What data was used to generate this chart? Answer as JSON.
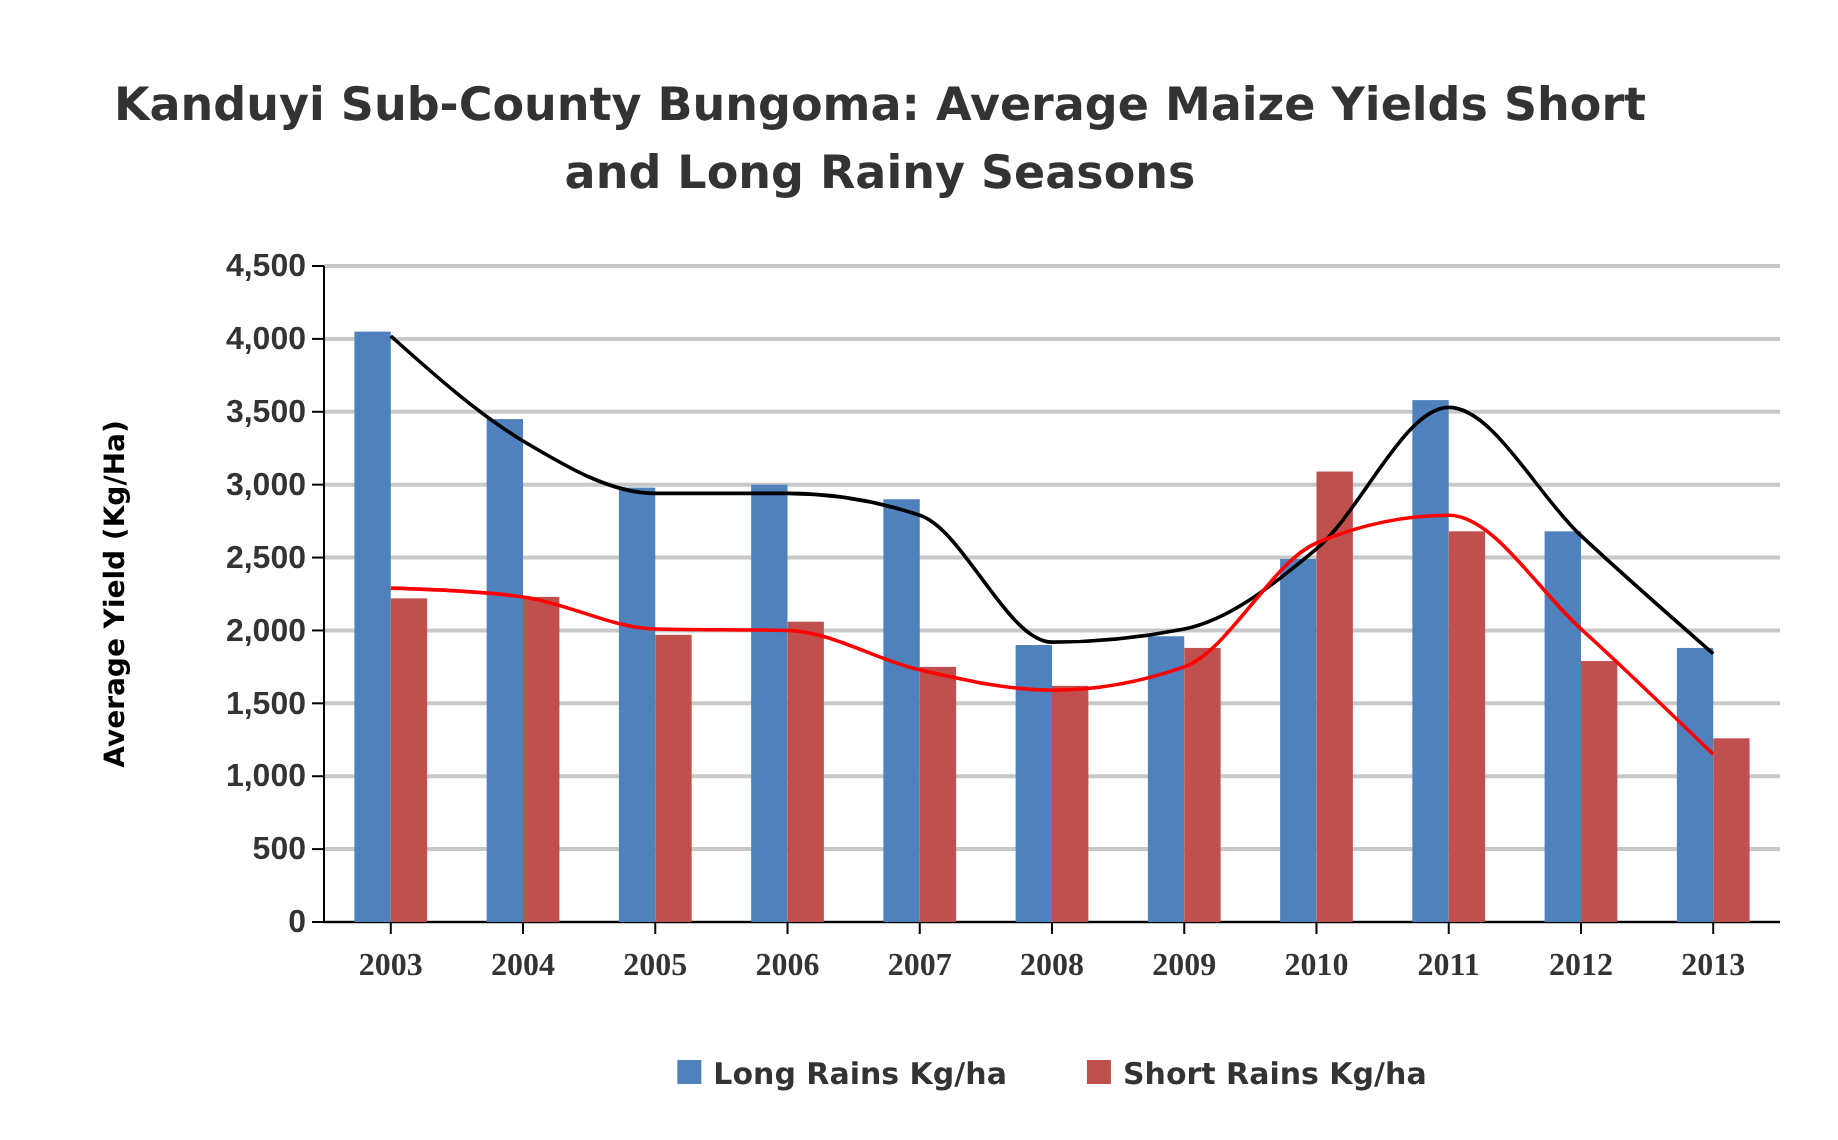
{
  "chart_data": {
    "type": "bar",
    "title": "Kanduyi Sub-County Bungoma: Average Maize Yields Short and Long Rainy Seasons",
    "ylabel": "Average Yield (Kg/Ha)",
    "categories": [
      "2003",
      "2004",
      "2005",
      "2006",
      "2007",
      "2008",
      "2009",
      "2010",
      "2011",
      "2012",
      "2013"
    ],
    "series": [
      {
        "name": "Long Rains Kg/ha",
        "color": "#4f81bd",
        "values": [
          4050,
          3450,
          2980,
          3000,
          2900,
          1900,
          1960,
          2490,
          3580,
          2680,
          1880
        ]
      },
      {
        "name": "Short Rains Kg/ha",
        "color": "#c0504d",
        "values": [
          2220,
          2230,
          1970,
          2060,
          1750,
          1620,
          1880,
          3090,
          2680,
          1790,
          1260
        ]
      },
      {
        "type": "line",
        "color": "#000000",
        "values": [
          4020,
          3300,
          2940,
          2940,
          2790,
          1920,
          2010,
          2560,
          3530,
          2650,
          1840
        ]
      },
      {
        "type": "line",
        "color": "#ff0000",
        "values": [
          2290,
          2230,
          2010,
          2000,
          1730,
          1590,
          1750,
          2600,
          2790,
          2010,
          1150
        ]
      }
    ],
    "ylim": [
      0,
      4500
    ],
    "yticks": [
      {
        "value": 0,
        "label": "0"
      },
      {
        "value": 500,
        "label": "500"
      },
      {
        "value": 1000,
        "label": "1,000"
      },
      {
        "value": 1500,
        "label": "1,500"
      },
      {
        "value": 2000,
        "label": "2,000"
      },
      {
        "value": 2500,
        "label": "2,500"
      },
      {
        "value": 3000,
        "label": "3,000"
      },
      {
        "value": 3500,
        "label": "3,500"
      },
      {
        "value": 4000,
        "label": "4,000"
      },
      {
        "value": 4500,
        "label": "4,500"
      }
    ],
    "grid": "y",
    "legend": "bottom"
  }
}
